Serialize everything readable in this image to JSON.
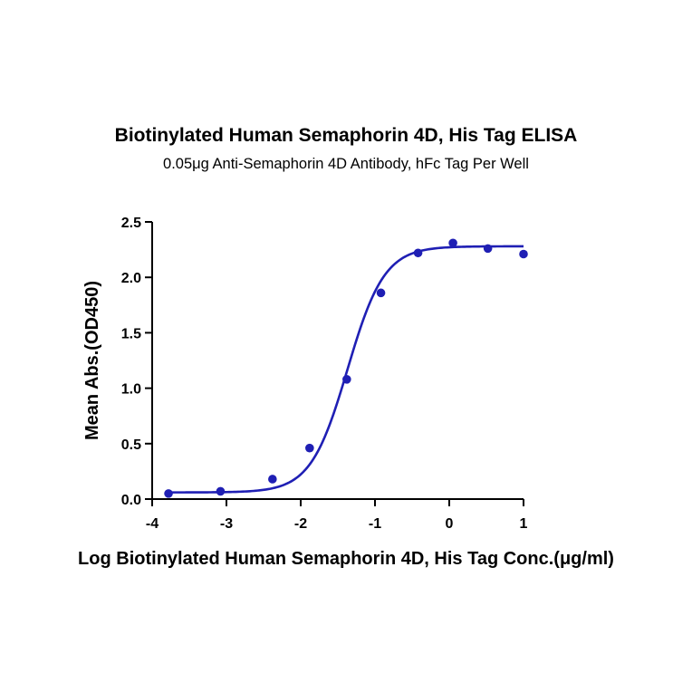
{
  "chart_data": {
    "type": "scatter",
    "title": "Biotinylated Human Semaphorin 4D, His Tag ELISA",
    "subtitle": "0.05μg Anti-Semaphorin 4D Antibody, hFc Tag Per Well",
    "xlabel": "Log Biotinylated Human Semaphorin 4D, His Tag Conc.(μg/ml)",
    "ylabel": "Mean Abs.(OD450)",
    "xlim": [
      -4,
      1
    ],
    "ylim": [
      0,
      2.5
    ],
    "xticks": [
      "-4",
      "-3",
      "-2",
      "-1",
      "0",
      "1"
    ],
    "yticks": [
      "0.0",
      "0.5",
      "1.0",
      "1.5",
      "2.0",
      "2.5"
    ],
    "grid": false,
    "series": [
      {
        "x": [
          -3.78,
          -3.08,
          -2.38,
          -1.88,
          -1.38,
          -0.92,
          -0.42,
          0.05,
          0.52,
          1.0
        ],
        "y": [
          0.05,
          0.07,
          0.18,
          0.46,
          1.08,
          1.86,
          2.22,
          2.31,
          2.26,
          2.21
        ],
        "color": "#1f1fb4"
      }
    ],
    "fit": {
      "model": "4PL",
      "bottom": 0.06,
      "top": 2.28,
      "logEC50": -1.37,
      "hill": 1.75,
      "color": "#1f1fb4"
    }
  }
}
